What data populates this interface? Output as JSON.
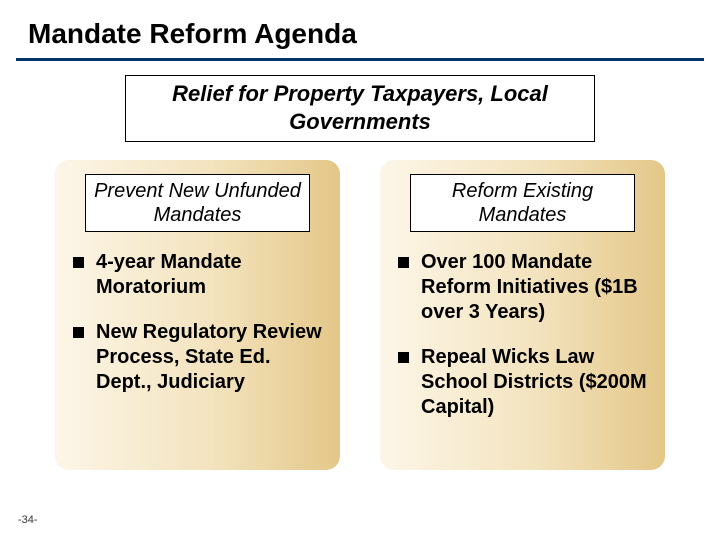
{
  "title": "Mandate Reform Agenda",
  "banner": "Relief for Property Taxpayers, Local Governments",
  "panels": [
    {
      "heading": "Prevent New Unfunded Mandates",
      "bullets": [
        "4-year Mandate Moratorium",
        "New Regulatory Review Process, State Ed. Dept., Judiciary"
      ]
    },
    {
      "heading": "Reform Existing Mandates",
      "bullets": [
        "Over 100 Mandate Reform Initiatives ($1B over 3 Years)",
        "Repeal Wicks Law School Districts ($200M Capital)"
      ]
    }
  ],
  "page_number": "-34-",
  "style": {
    "slide_size": [
      720,
      540
    ],
    "title_fontsize": 28,
    "banner_fontsize": 22,
    "heading_fontsize": 20,
    "bullet_fontsize": 20,
    "rule_color": "#003366",
    "panel_gradient": [
      "#fdf6e8",
      "#f3e3be",
      "#e4c788"
    ],
    "panel_radius": 14,
    "bullet_marker_size": 11,
    "text_color": "#000000",
    "background_color": "#ffffff"
  }
}
